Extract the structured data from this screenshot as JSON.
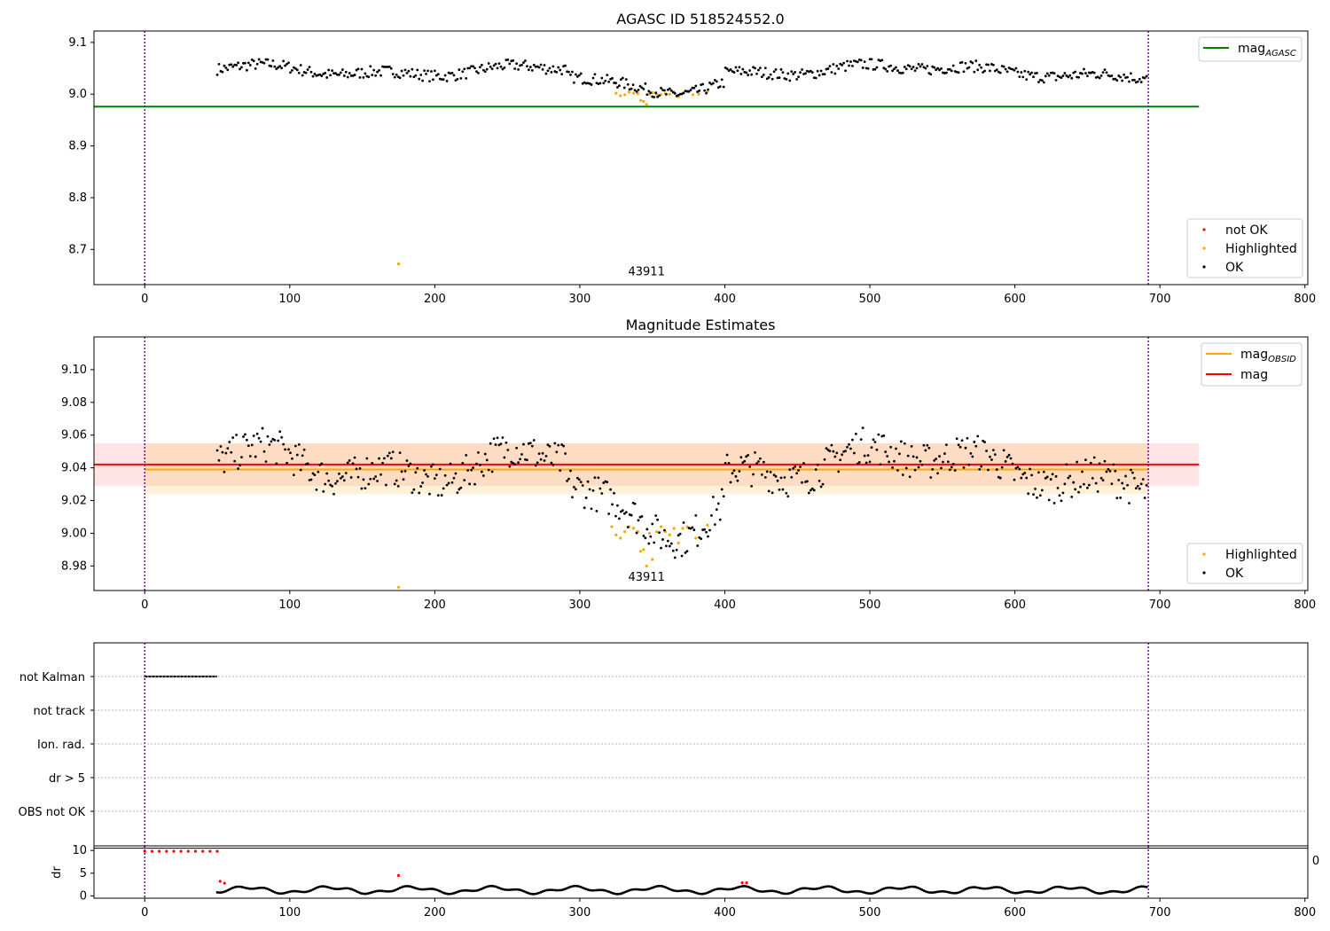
{
  "chart_data": [
    {
      "type": "scatter",
      "title": "AGASC ID 518524552.0",
      "xlim": [
        -35,
        802
      ],
      "ylim": [
        8.632,
        9.122
      ],
      "xticks": [
        0,
        100,
        200,
        300,
        400,
        500,
        600,
        700,
        800
      ],
      "yticks": [
        8.7,
        8.8,
        8.9,
        9.0,
        9.1
      ],
      "vlines": [
        0,
        692
      ],
      "hline": {
        "name": "mag_AGASC",
        "value": 8.976,
        "x": [
          -35,
          727
        ],
        "color": "#008000"
      },
      "annotation": {
        "text": "43911",
        "x": 346,
        "y": 8.65
      },
      "series": [
        {
          "name": "not OK",
          "color": "#ff0000",
          "points": []
        },
        {
          "name": "Highlighted",
          "color": "#ffa500",
          "points": [
            [
              175,
              8.672
            ],
            [
              325,
              9.002
            ],
            [
              328,
              8.997
            ],
            [
              331,
              8.999
            ],
            [
              334,
              9.004
            ],
            [
              337,
              9.002
            ],
            [
              340,
              9.001
            ],
            [
              342,
              8.988
            ],
            [
              344,
              8.986
            ],
            [
              346,
              8.98
            ],
            [
              348,
              9.0
            ],
            [
              350,
              9.003
            ],
            [
              353,
              9.0
            ],
            [
              356,
              8.999
            ],
            [
              359,
              9.001
            ],
            [
              362,
              9.0
            ],
            [
              365,
              9.004
            ],
            [
              368,
              8.995
            ],
            [
              371,
              9.002
            ],
            [
              374,
              9.006
            ],
            [
              378,
              8.999
            ],
            [
              382,
              9.0
            ],
            [
              388,
              9.005
            ]
          ]
        },
        {
          "name": "OK",
          "color": "#000000",
          "start": 50,
          "end": 692,
          "step": 1.2
        }
      ],
      "legend": [
        "mag_AGASC",
        "not OK",
        "Highlighted",
        "OK"
      ]
    },
    {
      "type": "scatter",
      "title": "Magnitude Estimates",
      "xlim": [
        -35,
        802
      ],
      "ylim": [
        8.965,
        9.12
      ],
      "xticks": [
        0,
        100,
        200,
        300,
        400,
        500,
        600,
        700,
        800
      ],
      "yticks": [
        8.98,
        9.0,
        9.02,
        9.04,
        9.06,
        9.08,
        9.1
      ],
      "vlines": [
        0,
        692
      ],
      "bands": [
        {
          "color": "#ff0000",
          "opacity": 0.1,
          "y0": 9.029,
          "y1": 9.055,
          "x": [
            -35,
            727
          ]
        },
        {
          "color": "#ffa500",
          "opacity": 0.15,
          "y0": 9.024,
          "y1": 9.055,
          "x": [
            0,
            692
          ]
        }
      ],
      "lines": [
        {
          "name": "mag_OBSID",
          "value": 9.039,
          "x": [
            0,
            692
          ],
          "color": "#ffa500"
        },
        {
          "name": "mag",
          "value": 9.042,
          "x": [
            -35,
            727
          ],
          "color": "#ff0000"
        }
      ],
      "annotation": {
        "text": "43911",
        "x": 346,
        "y": 8.971
      },
      "series": [
        {
          "name": "Highlighted",
          "color": "#ffa500",
          "points": [
            [
              175,
              8.967
            ],
            [
              322,
              9.004
            ],
            [
              325,
              8.999
            ],
            [
              328,
              8.997
            ],
            [
              331,
              9.001
            ],
            [
              334,
              9.004
            ],
            [
              337,
              9.003
            ],
            [
              340,
              9.001
            ],
            [
              342,
              8.989
            ],
            [
              344,
              8.99
            ],
            [
              346,
              8.98
            ],
            [
              348,
              9.0
            ],
            [
              350,
              8.984
            ],
            [
              353,
              9.001
            ],
            [
              356,
              9.004
            ],
            [
              359,
              9.001
            ],
            [
              362,
              8.999
            ],
            [
              365,
              9.003
            ],
            [
              368,
              8.994
            ],
            [
              371,
              9.003
            ],
            [
              374,
              9.004
            ],
            [
              380,
              8.997
            ],
            [
              388,
              9.005
            ]
          ]
        },
        {
          "name": "OK",
          "color": "#000000",
          "start": 50,
          "end": 692,
          "step": 1.2
        }
      ],
      "legend": [
        "mag_OBSID",
        "mag",
        "Highlighted",
        "OK"
      ]
    },
    {
      "type": "scatter",
      "title": "",
      "xlim": [
        -35,
        802
      ],
      "categories": [
        "not Kalman",
        "not track",
        "Ion. rad.",
        "dr > 5",
        "OBS not OK"
      ],
      "vlines": [
        0,
        692
      ],
      "flags": [
        {
          "category": "not Kalman",
          "x": [
            0,
            50
          ],
          "color": "#000000"
        }
      ]
    },
    {
      "type": "scatter",
      "title": "",
      "ylabel": "dr",
      "xlim": [
        -35,
        802
      ],
      "ylim": [
        -0.5,
        11
      ],
      "xticks": [
        0,
        100,
        200,
        300,
        400,
        500,
        600,
        700,
        800
      ],
      "yticks": [
        0,
        5,
        10
      ],
      "vlines": [
        0,
        692
      ],
      "hline": {
        "value": 10.5,
        "color": "#000000"
      },
      "clipped_tick": "0",
      "series": [
        {
          "name": "dr > 5",
          "color": "#ff0000",
          "points": [
            [
              0,
              9.8
            ],
            [
              5,
              9.8
            ],
            [
              10,
              9.8
            ],
            [
              15,
              9.8
            ],
            [
              20,
              9.8
            ],
            [
              25,
              9.8
            ],
            [
              30,
              9.8
            ],
            [
              35,
              9.8
            ],
            [
              40,
              9.8
            ],
            [
              45,
              9.8
            ],
            [
              50,
              9.8
            ],
            [
              175,
              4.5
            ],
            [
              52,
              3.2
            ],
            [
              55,
              2.8
            ],
            [
              412,
              2.9
            ],
            [
              415,
              2.9
            ]
          ]
        },
        {
          "name": "dr",
          "color": "#000000",
          "start": 50,
          "end": 692,
          "step": 1.2
        }
      ]
    }
  ]
}
